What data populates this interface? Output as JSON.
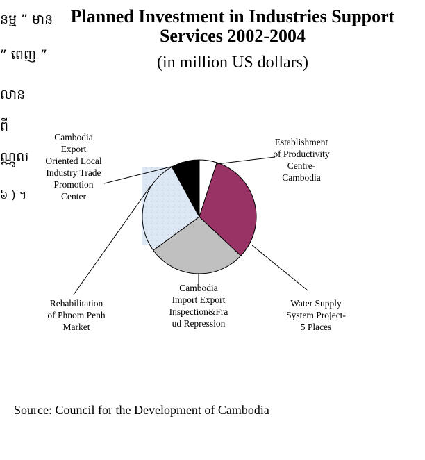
{
  "left_fragments": [
    "ន​ម្ម ” មាន",
    "” ពេញ ”",
    "លាន",
    "ពី",
    "ណ្ណូល",
    "៦ )   ។"
  ],
  "source": "Source: Council for the Development of Cambodia",
  "chart_data": {
    "type": "pie",
    "title_lines": [
      "Planned Investment in Industries Support",
      "Services  2002-2004"
    ],
    "subtitle": "(in million US dollars)",
    "start_angle_deg": 0,
    "direction": "clockwise",
    "slices": [
      {
        "label_lines": [
          "Establishment",
          "of Productivity",
          "Centre-",
          "Cambodia"
        ],
        "value": 5,
        "color": "#ffffff"
      },
      {
        "label_lines": [
          "Water  Supply",
          "System Project-",
          "5 Places"
        ],
        "value": 32,
        "color": "#993366"
      },
      {
        "label_lines": [
          "Cambodia",
          "Import Export",
          "Inspection&Fra",
          "ud Repression"
        ],
        "value": 28,
        "color": "#c0c0c0"
      },
      {
        "label_lines": [
          "Rehabilitation",
          "of Phnom Penh",
          "Market"
        ],
        "value": 27,
        "color": "#dde8f4"
      },
      {
        "label_lines": [
          "Cambodia",
          "Export",
          "Oriented Local",
          "Industry Trade",
          "Promotion",
          "Center"
        ],
        "value": 8,
        "color": "#000000"
      }
    ]
  }
}
